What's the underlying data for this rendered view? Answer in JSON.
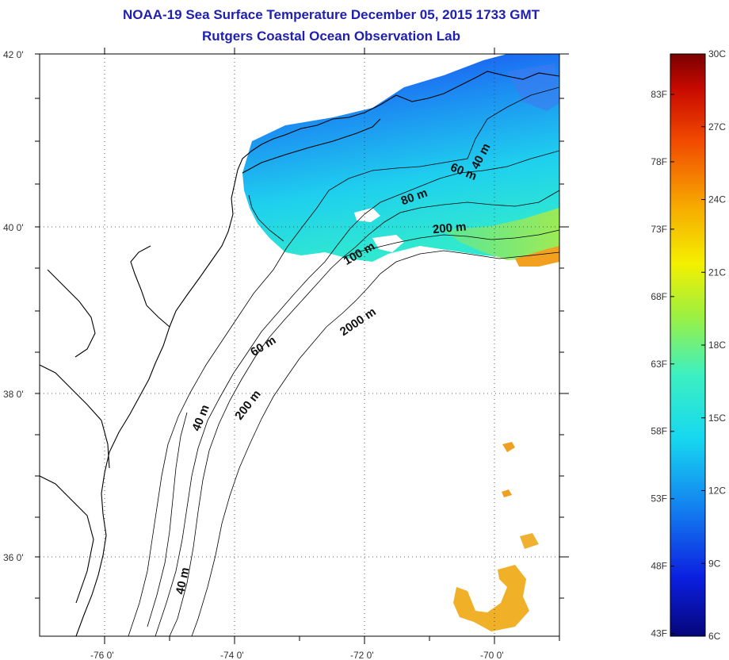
{
  "title": {
    "line1": "NOAA-19 Sea Surface Temperature December 05, 2015 1733 GMT",
    "line2": "Rutgers Coastal Ocean Observation Lab"
  },
  "map": {
    "lat_ticks": [
      {
        "value": 42,
        "label": "42 0'"
      },
      {
        "value": 40,
        "label": "40 0'"
      },
      {
        "value": 38,
        "label": "38 0'"
      },
      {
        "value": 36,
        "label": "36 0'"
      }
    ],
    "lon_ticks": [
      {
        "value": -76,
        "label": "-76 0'"
      },
      {
        "value": -74,
        "label": "-74 0'"
      },
      {
        "value": -72,
        "label": "-72 0'"
      },
      {
        "value": -70,
        "label": "-70 0'"
      }
    ],
    "lon_range": [
      -77,
      -69
    ],
    "lat_range": [
      35,
      42
    ],
    "grid": "dotted",
    "contour_labels": [
      {
        "text": "40 m"
      },
      {
        "text": "60 m"
      },
      {
        "text": "80 m"
      },
      {
        "text": "200 m"
      },
      {
        "text": "100 m"
      },
      {
        "text": "2000 m"
      },
      {
        "text": "60 m"
      },
      {
        "text": "200 m"
      },
      {
        "text": "40 m"
      },
      {
        "text": "40 m"
      }
    ]
  },
  "colorbar": {
    "fahrenheit": [
      "83F",
      "78F",
      "73F",
      "68F",
      "63F",
      "58F",
      "53F",
      "48F",
      "43F"
    ],
    "celsius": [
      "30C",
      "27C",
      "24C",
      "21C",
      "18C",
      "15C",
      "12C",
      "9C",
      "6C"
    ],
    "range_c": [
      6,
      30
    ],
    "colors": [
      "#06067a",
      "#0b1fe0",
      "#1380f0",
      "#16d8f0",
      "#3df0c0",
      "#9cf040",
      "#f4f000",
      "#f7a800",
      "#f24a00",
      "#c80a00",
      "#7a0000"
    ]
  }
}
